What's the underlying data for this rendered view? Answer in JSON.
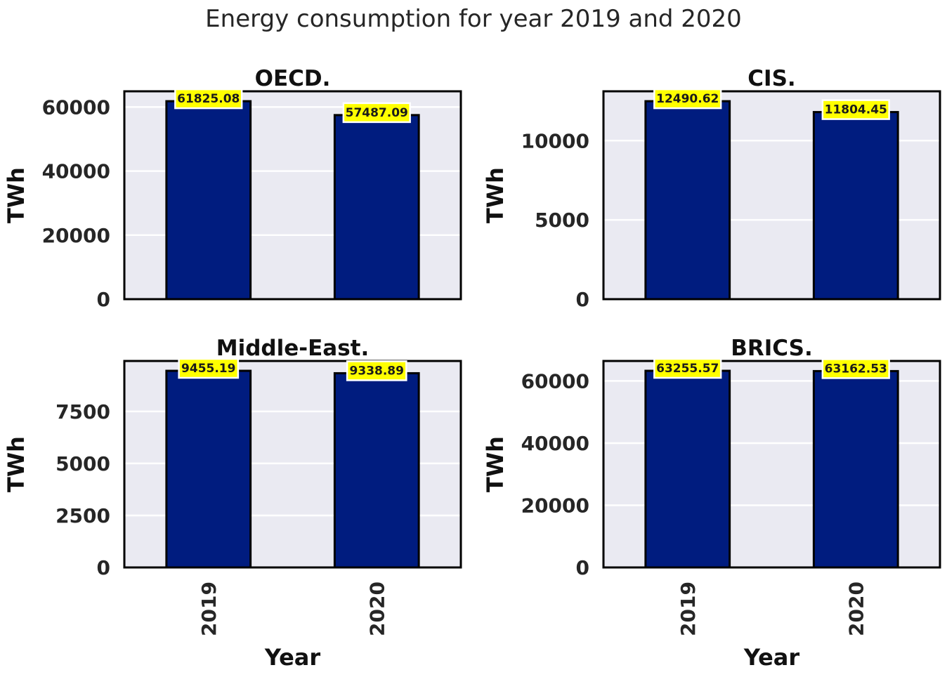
{
  "figure_title": "Energy consumption for year 2019 and 2020",
  "colors": {
    "bar": "#001c7f",
    "panel_bg": "#eaeaf2",
    "grid": "#ffffff",
    "label_box": "#ffff00",
    "frame": "#000000"
  },
  "chart_data": [
    {
      "type": "bar",
      "title": "OECD.",
      "categories": [
        "2019",
        "2020"
      ],
      "values": [
        61825.08,
        57487.09
      ],
      "value_labels": [
        "61825.08",
        "57487.09"
      ],
      "ylabel": "TWh",
      "xlabel": "",
      "ylim": [
        0,
        64916.33
      ],
      "yticks": [
        0,
        20000,
        40000,
        60000
      ],
      "grid": true,
      "show_xticks": false
    },
    {
      "type": "bar",
      "title": "CIS.",
      "categories": [
        "2019",
        "2020"
      ],
      "values": [
        12490.62,
        11804.45
      ],
      "value_labels": [
        "12490.62",
        "11804.45"
      ],
      "ylabel": "TWh",
      "xlabel": "",
      "ylim": [
        0,
        13115.15
      ],
      "yticks": [
        0,
        5000,
        10000
      ],
      "grid": true,
      "show_xticks": false
    },
    {
      "type": "bar",
      "title": "Middle-East.",
      "categories": [
        "2019",
        "2020"
      ],
      "values": [
        9455.19,
        9338.89
      ],
      "value_labels": [
        "9455.19",
        "9338.89"
      ],
      "ylabel": "TWh",
      "xlabel": "Year",
      "ylim": [
        0,
        9927.95
      ],
      "yticks": [
        0,
        2500,
        5000,
        7500
      ],
      "grid": true,
      "show_xticks": true
    },
    {
      "type": "bar",
      "title": "BRICS.",
      "categories": [
        "2019",
        "2020"
      ],
      "values": [
        63255.57,
        63162.53
      ],
      "value_labels": [
        "63255.57",
        "63162.53"
      ],
      "ylabel": "TWh",
      "xlabel": "Year",
      "ylim": [
        0,
        66418.35
      ],
      "yticks": [
        0,
        20000,
        40000,
        60000
      ],
      "grid": true,
      "show_xticks": true
    }
  ]
}
